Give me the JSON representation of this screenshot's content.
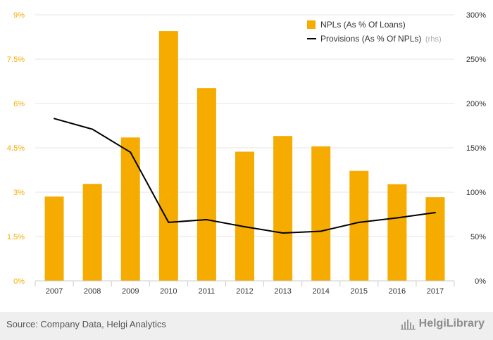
{
  "chart_data": {
    "type": "bar",
    "categories": [
      "2007",
      "2008",
      "2009",
      "2010",
      "2011",
      "2012",
      "2013",
      "2014",
      "2015",
      "2016",
      "2017"
    ],
    "series": [
      {
        "name": "NPLs (As % Of Loans)",
        "type": "bar",
        "axis": "left",
        "color": "#f5ab00",
        "values": [
          2.85,
          3.28,
          4.85,
          8.45,
          6.52,
          4.37,
          4.9,
          4.55,
          3.72,
          3.27,
          2.83
        ]
      },
      {
        "name": "Provisions (As % Of NPLs)",
        "name_suffix": "(rhs)",
        "type": "line",
        "axis": "right",
        "color": "#000000",
        "values": [
          183,
          171,
          145,
          66,
          69,
          61,
          54,
          56,
          66,
          71,
          77
        ]
      }
    ],
    "left_axis": {
      "ylim": [
        0,
        9
      ],
      "ticks": [
        0,
        1.5,
        3,
        4.5,
        6,
        7.5,
        9
      ],
      "tick_labels": [
        "0%",
        "1.5%",
        "3%",
        "4.5%",
        "6%",
        "7.5%",
        "9%"
      ],
      "color": "#f5ab00"
    },
    "right_axis": {
      "ylim": [
        0,
        300
      ],
      "ticks": [
        0,
        50,
        100,
        150,
        200,
        250,
        300
      ],
      "tick_labels": [
        "0%",
        "50%",
        "100%",
        "150%",
        "200%",
        "250%",
        "300%"
      ],
      "color": "#333333"
    },
    "grid": true,
    "legend": "top-right"
  },
  "footer": {
    "source": "Source: Company Data, Helgi Analytics",
    "brand": "HelgiLibrary",
    "brand_icon": "helgi-library-icon"
  }
}
